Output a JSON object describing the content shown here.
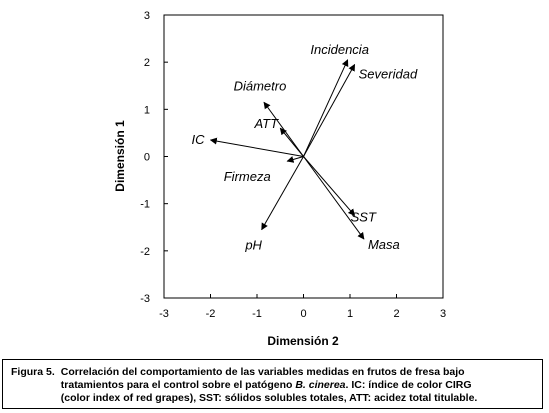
{
  "chart_data": {
    "type": "biplot",
    "xlabel": "Dimensión 2",
    "ylabel": "Dimensión 1",
    "xlim": [
      -3,
      3
    ],
    "ylim": [
      -3,
      3
    ],
    "xticks": [
      "-3",
      "-2",
      "-1",
      "0",
      "1",
      "2",
      "3"
    ],
    "yticks": [
      "3",
      "2",
      "1",
      "0",
      "-1",
      "-2",
      "-3"
    ],
    "grid": false,
    "vectors": [
      {
        "name": "Incidencia",
        "x": 0.95,
        "y": 2.05
      },
      {
        "name": "Severidad",
        "x": 1.1,
        "y": 1.95
      },
      {
        "name": "Diámetro",
        "x": -0.85,
        "y": 1.15
      },
      {
        "name": "ATT",
        "x": -0.5,
        "y": 0.6
      },
      {
        "name": "IC",
        "x": -2.0,
        "y": 0.35
      },
      {
        "name": "Firmeza",
        "x": -0.35,
        "y": -0.1
      },
      {
        "name": "pH",
        "x": -0.9,
        "y": -1.55
      },
      {
        "name": "SST",
        "x": 1.1,
        "y": -1.25
      },
      {
        "name": "Masa",
        "x": 1.3,
        "y": -1.75
      }
    ]
  },
  "caption": {
    "label": "Figura 5.",
    "line1": "Correlación del comportamiento de las variables medidas en frutos de fresa bajo",
    "line2_pre": "tratamientos para el control sobre el patógeno ",
    "line2_em": "B. cinerea",
    "line2_post": ". IC: índice de color CIRG",
    "line3": "(color index of red grapes), SST: sólidos solubles totales, ATT: acidez total titulable."
  }
}
